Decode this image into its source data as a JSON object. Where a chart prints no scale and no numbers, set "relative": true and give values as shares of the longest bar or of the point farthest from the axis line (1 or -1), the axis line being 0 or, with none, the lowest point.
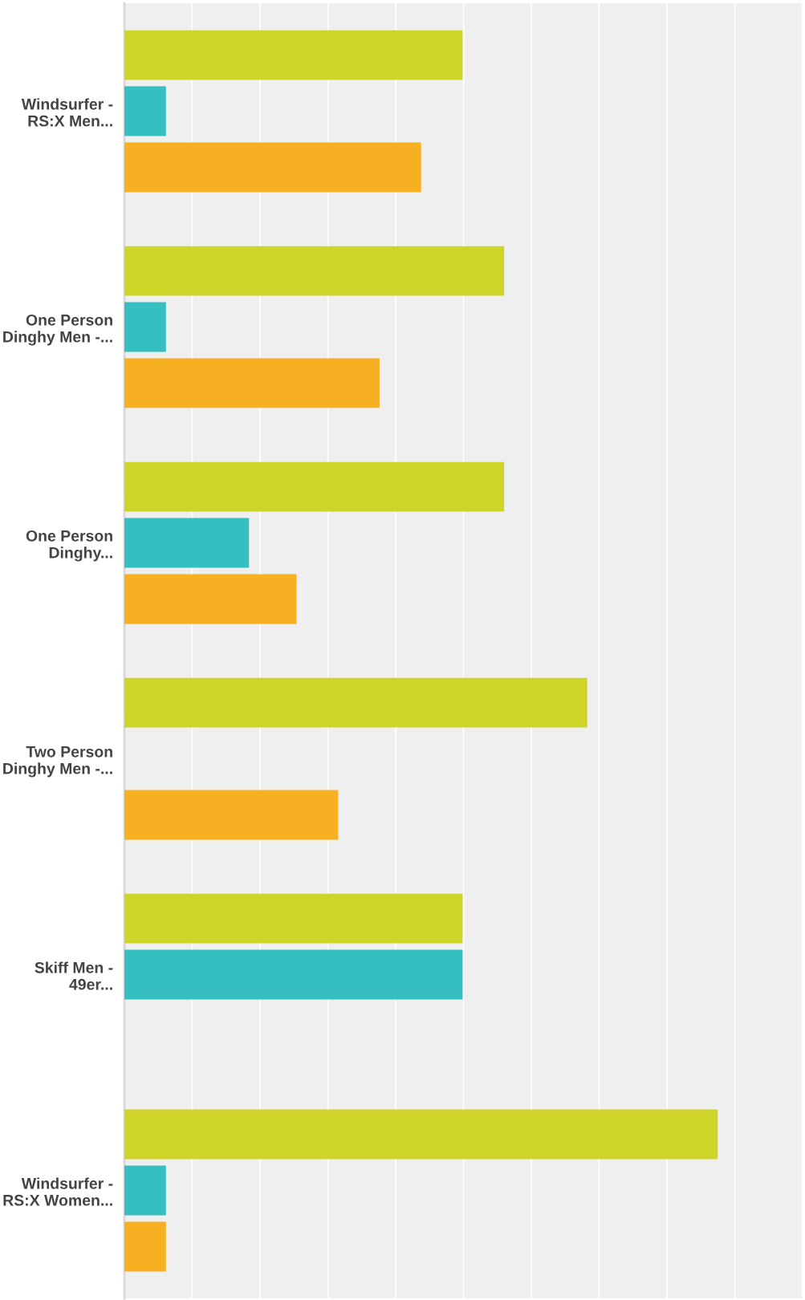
{
  "chart_data": {
    "type": "bar",
    "orientation": "horizontal",
    "relative": true,
    "grid": "x",
    "legend": false,
    "categories": [
      "Windsurfer -\nRS:X Men...",
      "One Person\nDinghy Men -...",
      "One Person\nDinghy...",
      "Two Person\nDinghy Men -...",
      "Skiff Men -\n49er...",
      "Windsurfer -\nRS:X Women..."
    ],
    "series": [
      {
        "color": "#cfd428",
        "values": [
          0.57,
          0.64,
          0.64,
          0.78,
          0.57,
          1
        ]
      },
      {
        "color": "#35bfc1",
        "values": [
          0.07,
          0.07,
          0.21,
          null,
          0.57,
          0.07
        ]
      },
      {
        "color": "#f6b022",
        "values": [
          0.5,
          0.43,
          0.29,
          0.36,
          null,
          0.07
        ]
      }
    ]
  }
}
